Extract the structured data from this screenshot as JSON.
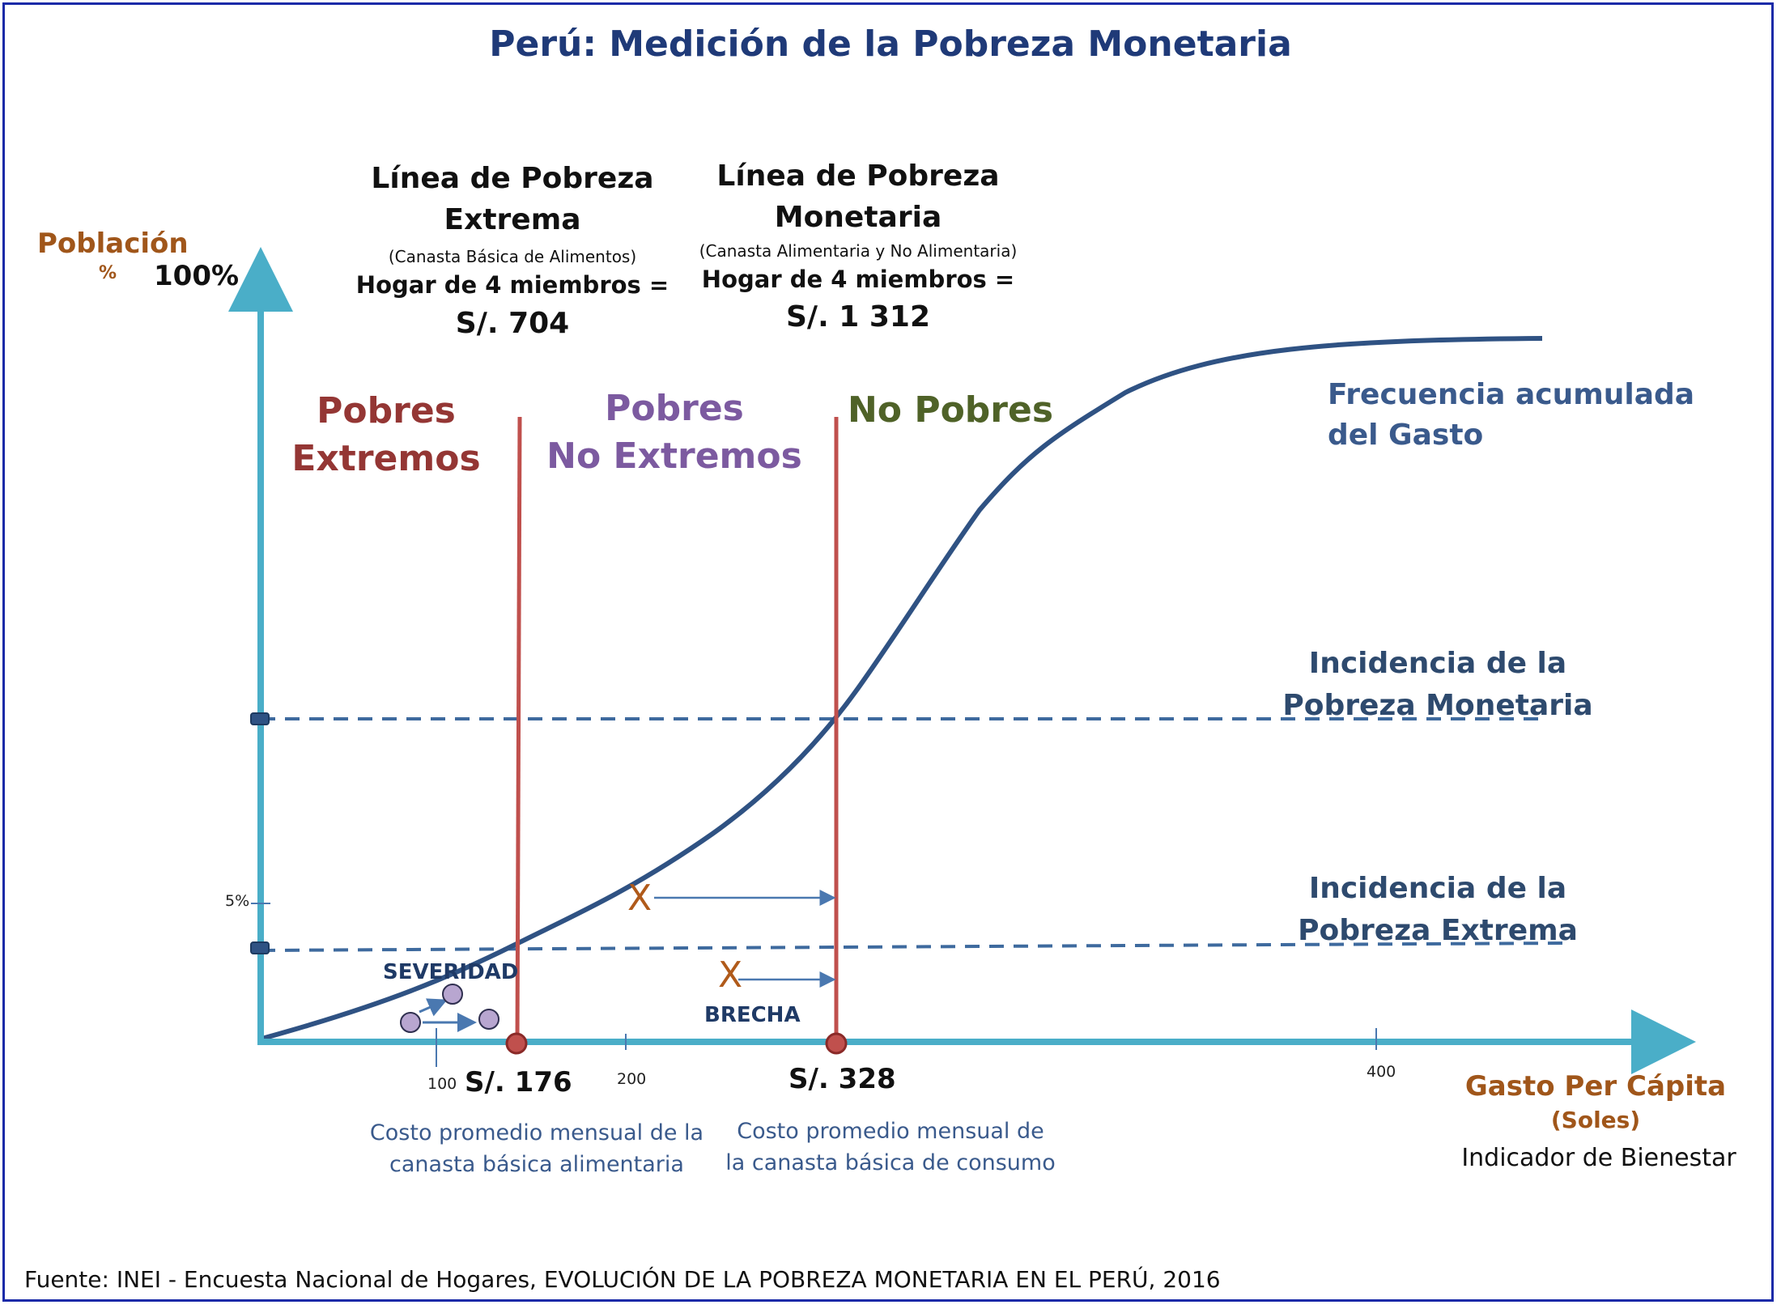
{
  "title": "Perú: Medición de la Pobreza Monetaria",
  "y_axis": {
    "label": "Población",
    "unit": "%",
    "top_value": "100%",
    "tick_5": "5%"
  },
  "x_axis": {
    "label": "Gasto Per Cápita",
    "unit": "(Soles)",
    "subtitle": "Indicador de Bienestar",
    "ticks": [
      "100",
      "200",
      "400"
    ]
  },
  "line_extreme": {
    "heading_1": "Línea de Pobreza",
    "heading_2": "Extrema",
    "note": "(Canasta Básica de Alimentos)",
    "household": "Hogar de 4 miembros =",
    "value": "S/. 704",
    "per_capita": "S/. 176",
    "desc_1": "Costo promedio mensual de la",
    "desc_2": "canasta básica alimentaria"
  },
  "line_monetary": {
    "heading_1": "Línea de Pobreza",
    "heading_2": "Monetaria",
    "note": "(Canasta Alimentaria y  No Alimentaria)",
    "household": "Hogar de 4 miembros =",
    "value": "S/. 1 312",
    "per_capita": "S/. 328",
    "desc_1": "Costo promedio mensual de",
    "desc_2": "la canasta básica de consumo"
  },
  "regions": {
    "extreme_1": "Pobres",
    "extreme_2": "Extremos",
    "nonextreme_1": "Pobres",
    "nonextreme_2": "No Extremos",
    "nonpoor": "No Pobres"
  },
  "curve_label": {
    "line1": "Frecuencia acumulada",
    "line2": "del Gasto"
  },
  "incidence_monetary": {
    "line1": "Incidencia de la",
    "line2": "Pobreza Monetaria"
  },
  "incidence_extreme": {
    "line1": "Incidencia de la",
    "line2": "Pobreza Extrema"
  },
  "severity": "SEVERIDAD",
  "gap": "BRECHA",
  "gap_marker": "X",
  "source": "Fuente: INEI - Encuesta Nacional de Hogares, EVOLUCIÓN DE LA POBREZA MONETARIA EN EL PERÚ, 2016",
  "colors": {
    "axis": "#4aaec8",
    "curve": "#2f5283",
    "poverty_line": "#c0504d",
    "extreme": "#943634",
    "nonextreme": "#7c5aa0",
    "nonpoor": "#4f6228",
    "dashed": "#3e6a9e",
    "dot_fill": "#b8a6d0"
  }
}
